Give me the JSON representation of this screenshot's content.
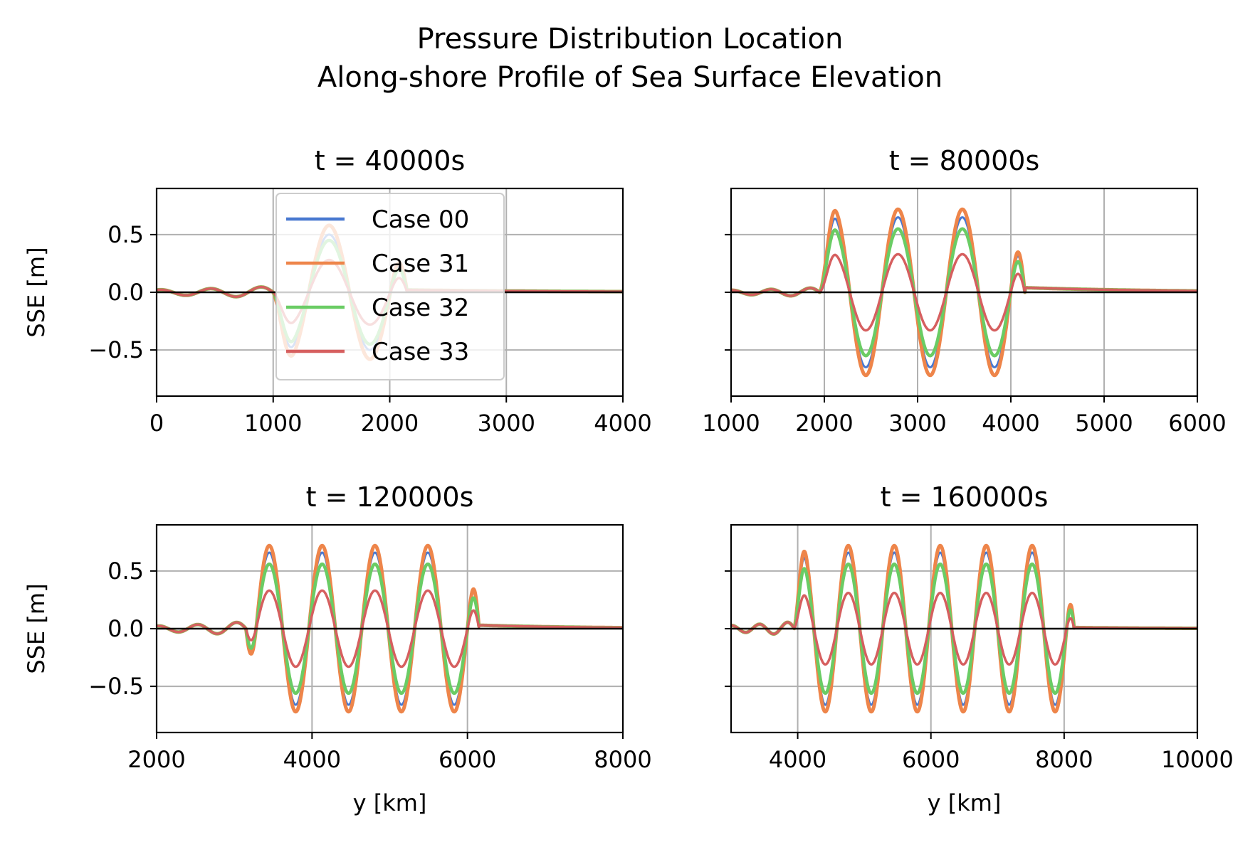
{
  "figure": {
    "title_line1": "Pressure Distribution Location",
    "title_line2": "Along-shore Profile of Sea Surface Elevation"
  },
  "legend": [
    "Case 00",
    "Case 31",
    "Case 32",
    "Case 33"
  ],
  "colors": {
    "Case 00": "#4878d0",
    "Case 31": "#ee854a",
    "Case 32": "#6acc64",
    "Case 33": "#d65f5f",
    "grid": "#b0b0b0",
    "zero_line": "#000000"
  },
  "chart_data": [
    {
      "type": "line",
      "title": "t = 40000s",
      "xlabel": "",
      "ylabel": "SSE [m]",
      "xlim": [
        0,
        4000
      ],
      "ylim": [
        -0.9,
        0.9
      ],
      "xticks": [
        0,
        1000,
        2000,
        3000,
        4000
      ],
      "yticks": [
        0.5,
        0.0,
        -0.5
      ],
      "ytick_labels": [
        "0.5",
        "0.0",
        "−0.5"
      ],
      "show_ytick_labels": true,
      "grid": true,
      "legend": "upper-center",
      "wave": {
        "start": 1000,
        "end": 2150,
        "period": 700,
        "phase": 1830,
        "sign": -1,
        "pre_end": 1000,
        "pre_period": 430,
        "pre_amp": 0.05,
        "tail": 0.02
      },
      "series": [
        {
          "name": "Case 00",
          "amplitude": 0.5
        },
        {
          "name": "Case 31",
          "amplitude": 0.58
        },
        {
          "name": "Case 32",
          "amplitude": 0.45
        },
        {
          "name": "Case 33",
          "amplitude": 0.28
        }
      ]
    },
    {
      "type": "line",
      "title": "t = 80000s",
      "xlabel": "",
      "ylabel": "",
      "xlim": [
        1000,
        6000
      ],
      "ylim": [
        -0.9,
        0.9
      ],
      "xticks": [
        1000,
        2000,
        3000,
        4000,
        5000,
        6000
      ],
      "yticks": [
        0.5,
        0.0,
        -0.5
      ],
      "ytick_labels": [
        "",
        "",
        ""
      ],
      "show_ytick_labels": false,
      "grid": true,
      "wave": {
        "start": 1950,
        "end": 4150,
        "period": 690,
        "phase": 2790,
        "sign": 1,
        "pre_end": 1950,
        "pre_period": 420,
        "pre_amp": 0.04,
        "tail": 0.04
      },
      "series": [
        {
          "name": "Case 00",
          "amplitude": 0.65
        },
        {
          "name": "Case 31",
          "amplitude": 0.72
        },
        {
          "name": "Case 32",
          "amplitude": 0.55
        },
        {
          "name": "Case 33",
          "amplitude": 0.33
        }
      ]
    },
    {
      "type": "line",
      "title": "t = 120000s",
      "xlabel": "y [km]",
      "ylabel": "SSE [m]",
      "xlim": [
        2000,
        8000
      ],
      "ylim": [
        -0.9,
        0.9
      ],
      "xticks": [
        2000,
        4000,
        6000,
        8000
      ],
      "yticks": [
        0.5,
        0.0,
        -0.5
      ],
      "ytick_labels": [
        "0.5",
        "0.0",
        "−0.5"
      ],
      "show_ytick_labels": true,
      "grid": true,
      "wave": {
        "start": 3150,
        "end": 6150,
        "period": 680,
        "phase": 3450,
        "sign": 1,
        "pre_end": 3150,
        "pre_period": 500,
        "pre_amp": 0.06,
        "tail": 0.03
      },
      "series": [
        {
          "name": "Case 00",
          "amplitude": 0.66
        },
        {
          "name": "Case 31",
          "amplitude": 0.72
        },
        {
          "name": "Case 32",
          "amplitude": 0.56
        },
        {
          "name": "Case 33",
          "amplitude": 0.33
        }
      ]
    },
    {
      "type": "line",
      "title": "t = 160000s",
      "xlabel": "y [km]",
      "ylabel": "",
      "xlim": [
        3000,
        10000
      ],
      "ylim": [
        -0.9,
        0.9
      ],
      "xticks": [
        4000,
        6000,
        8000,
        10000
      ],
      "yticks": [
        0.5,
        0.0,
        -0.5
      ],
      "ytick_labels": [
        "",
        "",
        ""
      ],
      "show_ytick_labels": false,
      "grid": true,
      "wave": {
        "start": 3950,
        "end": 8150,
        "period": 690,
        "phase": 4760,
        "sign": 1,
        "pre_end": 3950,
        "pre_period": 420,
        "pre_amp": 0.06,
        "tail": 0.01
      },
      "series": [
        {
          "name": "Case 00",
          "amplitude": 0.66
        },
        {
          "name": "Case 31",
          "amplitude": 0.72
        },
        {
          "name": "Case 32",
          "amplitude": 0.56
        },
        {
          "name": "Case 33",
          "amplitude": 0.31
        }
      ]
    }
  ]
}
